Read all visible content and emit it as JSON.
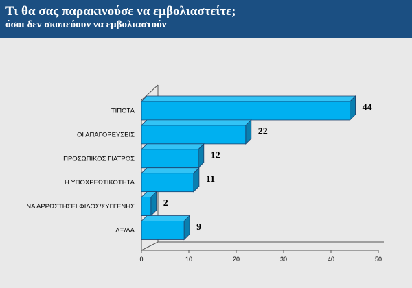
{
  "header": {
    "title": "Τι θα σας παρακινούσε να εμβολιαστείτε;",
    "subtitle": "όσοι δεν σκοπεύουν να εμβολιαστούν"
  },
  "colors": {
    "header_bg": "#1b4f82",
    "bar_front": "#00b0f0",
    "bar_top": "#33c3f5",
    "bar_side": "#0a7fb0",
    "bar_stroke": "#1f3f6a",
    "axis": "#555555"
  },
  "chart_data": {
    "type": "bar",
    "orientation": "horizontal",
    "style": "3d",
    "categories": [
      "ΤΙΠΟΤΑ",
      "ΟΙ ΑΠΑΓΟΡΕΥΣΕΙΣ",
      "ΠΡΟΣΩΠΙΚΟΣ ΓΙΑΤΡΟΣ",
      "Η ΥΠΟΧΡΕΩΤΙΚΟΤΗΤΑ",
      "ΝΑ ΑΡΡΩΣΤΗΣΕΙ ΦΙΛΟΣ/ΣΥΓΓΕΝΗΣ",
      "ΔΞ/ΔΑ"
    ],
    "values": [
      44,
      22,
      12,
      11,
      2,
      9
    ],
    "data_labels": [
      "44",
      "22",
      "12",
      "11",
      "2",
      "9"
    ],
    "xlim": [
      0,
      50
    ],
    "ticks": [
      0,
      10,
      20,
      30,
      40,
      50
    ],
    "tick_labels": [
      "0",
      "10",
      "20",
      "30",
      "40",
      "50"
    ],
    "grid": false,
    "legend": "none"
  }
}
